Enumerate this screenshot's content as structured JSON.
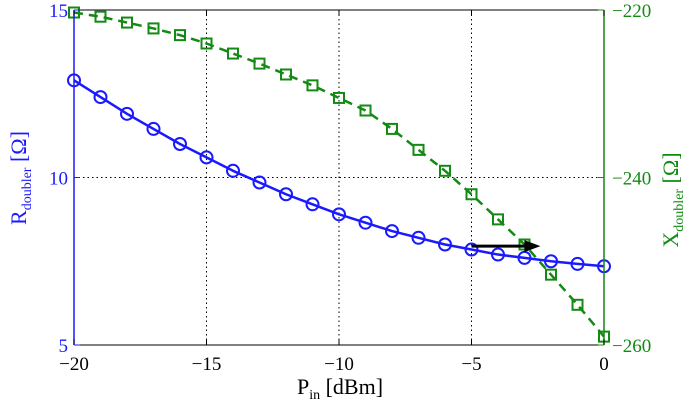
{
  "chart_data": {
    "type": "line",
    "x": [
      -20,
      -19,
      -18,
      -17,
      -16,
      -15,
      -14,
      -13,
      -12,
      -11,
      -10,
      -9,
      -8,
      -7,
      -6,
      -5,
      -4,
      -3,
      -2,
      -1,
      0
    ],
    "xlim": [
      -20,
      0
    ],
    "xticks": [
      -20,
      -15,
      -10,
      -5,
      0
    ],
    "xlabel": {
      "main": "P",
      "sub": "in",
      "unit": " [dBm]"
    },
    "left_axis": {
      "ylim": [
        5,
        15
      ],
      "yticks": [
        5,
        10,
        15
      ],
      "label": {
        "main": "R",
        "sub": "doubler",
        "unit": " [Ω]"
      },
      "color": "#1a1aff"
    },
    "right_axis": {
      "ylim": [
        -260,
        -220
      ],
      "yticks": [
        -220,
        -240,
        -260
      ],
      "label": {
        "main": "X",
        "sub": "doubler",
        "unit": " [Ω]"
      },
      "color": "#138a13"
    },
    "series": [
      {
        "name": "R_doubler",
        "axis": "left",
        "style": "solid",
        "marker": "circle",
        "color": "#1a1aff",
        "values": [
          12.9,
          12.4,
          11.9,
          11.45,
          11.0,
          10.6,
          10.2,
          9.85,
          9.5,
          9.2,
          8.9,
          8.65,
          8.4,
          8.2,
          8.0,
          7.85,
          7.7,
          7.6,
          7.5,
          7.42,
          7.35
        ]
      },
      {
        "name": "X_doubler",
        "axis": "right",
        "style": "dashed",
        "marker": "square",
        "color": "#138a13",
        "values": [
          -220.3,
          -220.8,
          -221.5,
          -222.2,
          -223.0,
          -224.0,
          -225.2,
          -226.4,
          -227.7,
          -229.0,
          -230.5,
          -232.0,
          -234.2,
          -236.7,
          -239.2,
          -242.0,
          -245.0,
          -248.0,
          -251.6,
          -255.2,
          -259.0
        ]
      }
    ],
    "annotation": {
      "type": "arrow",
      "from": [
        -5,
        7.95
      ],
      "to": [
        -2.4,
        7.95
      ],
      "color": "#000000",
      "meaning": "X_doubler curve uses right axis"
    },
    "grid": true
  }
}
